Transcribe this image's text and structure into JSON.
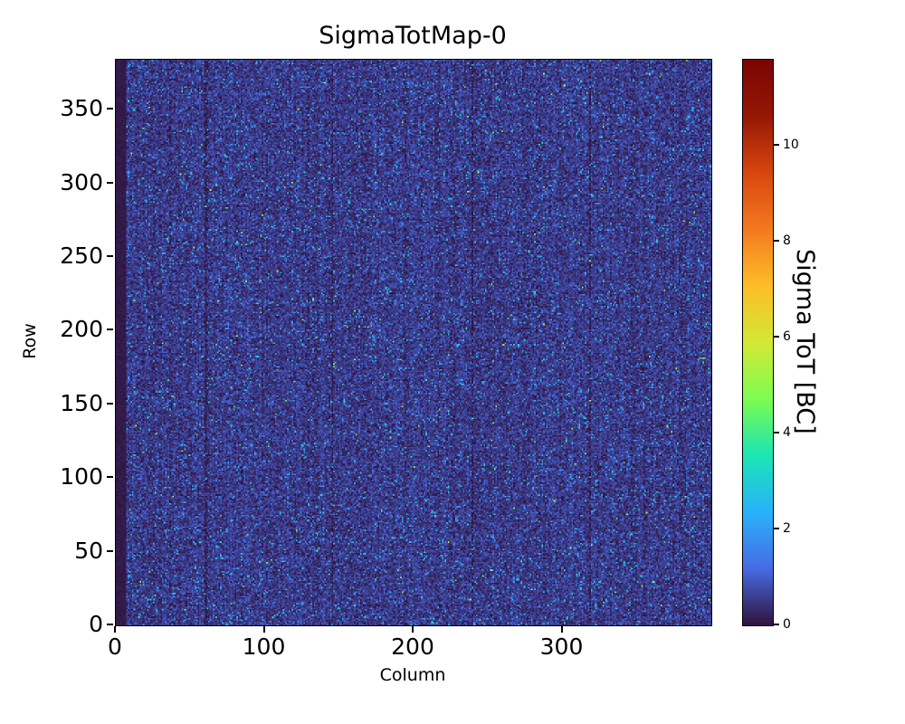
{
  "chart_data": {
    "type": "heatmap",
    "title": "SigmaTotMap-0",
    "xlabel": "Column",
    "ylabel": "Row",
    "x_range": [
      0,
      400
    ],
    "y_range": [
      0,
      384
    ],
    "x_ticks": [
      0,
      100,
      200,
      300
    ],
    "y_ticks": [
      0,
      50,
      100,
      150,
      200,
      250,
      300,
      350
    ],
    "grid": false,
    "colorbar": {
      "label": "Sigma ToT [BC]",
      "ticks": [
        0,
        2,
        4,
        6,
        8,
        10
      ],
      "vmin": 0,
      "vmax": 11.8,
      "colormap": "turbo",
      "colormap_stops": [
        {
          "t": 0.0,
          "rgb": [
            48,
            18,
            59
          ]
        },
        {
          "t": 0.1,
          "rgb": [
            70,
            107,
            227
          ]
        },
        {
          "t": 0.2,
          "rgb": [
            40,
            178,
            251
          ]
        },
        {
          "t": 0.3,
          "rgb": [
            27,
            229,
            181
          ]
        },
        {
          "t": 0.4,
          "rgb": [
            124,
            252,
            80
          ]
        },
        {
          "t": 0.5,
          "rgb": [
            210,
            233,
            53
          ]
        },
        {
          "t": 0.6,
          "rgb": [
            253,
            189,
            39
          ]
        },
        {
          "t": 0.7,
          "rgb": [
            244,
            121,
            31
          ]
        },
        {
          "t": 0.8,
          "rgb": [
            216,
            70,
            15
          ]
        },
        {
          "t": 0.9,
          "rgb": [
            150,
            23,
            5
          ]
        },
        {
          "t": 1.0,
          "rgb": [
            122,
            4,
            3
          ]
        }
      ]
    },
    "data_summary": {
      "description": "Pixel sigma-ToT noise map over a 400x384 pixel matrix; nearly uniform dark indigo baseline around 0.5 BC with dense random speckle noise up to a few BC, rare hot pixels, and a near-zero dark band in the leftmost ~7 columns plus faint darker vertical column lines.",
      "grid": [
        400,
        384
      ],
      "baseline_mean": 0.5,
      "baseline_sd": 0.28,
      "speckle_fraction": 0.05,
      "speckle_extra": [
        0.7,
        2.5
      ],
      "hot_fraction": 0.002,
      "hot_extra": [
        2.5,
        5.5
      ],
      "dark_left_columns": 7,
      "faint_dark_columns": [
        60,
        145,
        239,
        318
      ],
      "seed": 42
    },
    "colors": {
      "background": "#ffffff",
      "text": "#000000",
      "axes": "#000000",
      "base_field": "#39367e"
    }
  }
}
